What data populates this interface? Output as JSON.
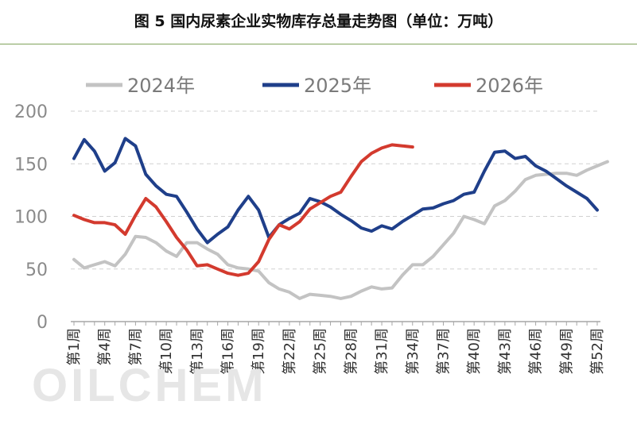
{
  "title": "图 5 国内尿素企业实物库存总量走势图（单位：万吨）",
  "watermark_text": "OILCHEM",
  "chart_data": {
    "type": "line",
    "title": "图 5 国内尿素企业实物库存总量走势图（单位：万吨）",
    "xlabel": "",
    "ylabel": "",
    "ylim": [
      0,
      200
    ],
    "yticks": [
      0,
      50,
      100,
      150,
      200
    ],
    "grid": "horizontal-dashed",
    "legend_position": "top",
    "x_tick_labels": [
      "第1周",
      "第4周",
      "第7周",
      "第10周",
      "第13周",
      "第16周",
      "第19周",
      "第22周",
      "第25周",
      "第28周",
      "第31周",
      "第34周",
      "第37周",
      "第40周",
      "第43周",
      "第46周",
      "第49周",
      "第52周"
    ],
    "series": [
      {
        "name": "2024年",
        "color": "#c3c3c3",
        "values": [
          59,
          51,
          54,
          57,
          53,
          64,
          81,
          80,
          75,
          67,
          62,
          75,
          75,
          69,
          64,
          54,
          51,
          50,
          48,
          37,
          31,
          28,
          22,
          26,
          25,
          24,
          22,
          24,
          29,
          33,
          31,
          32,
          44,
          54,
          54,
          62,
          73,
          84,
          100,
          97,
          93,
          110,
          115,
          124,
          135,
          139,
          140,
          141,
          141,
          139,
          144,
          148,
          152
        ]
      },
      {
        "name": "2025年",
        "color": "#1f3f8a",
        "values": [
          155,
          173,
          162,
          143,
          151,
          174,
          167,
          140,
          129,
          121,
          119,
          104,
          88,
          75,
          83,
          90,
          106,
          119,
          106,
          80,
          92,
          98,
          103,
          117,
          114,
          109,
          102,
          96,
          89,
          86,
          91,
          88,
          95,
          101,
          107,
          108,
          112,
          115,
          121,
          123,
          143,
          161,
          162,
          155,
          157,
          148,
          143,
          136,
          129,
          123,
          117,
          106
        ]
      },
      {
        "name": "2026年",
        "color": "#d33a2e",
        "values": [
          101,
          97,
          94,
          94,
          92,
          83,
          101,
          117,
          109,
          95,
          80,
          68,
          53,
          54,
          50,
          46,
          44,
          46,
          57,
          78,
          92,
          88,
          95,
          107,
          113,
          119,
          123,
          138,
          152,
          160,
          165,
          168,
          167,
          166
        ]
      }
    ]
  }
}
